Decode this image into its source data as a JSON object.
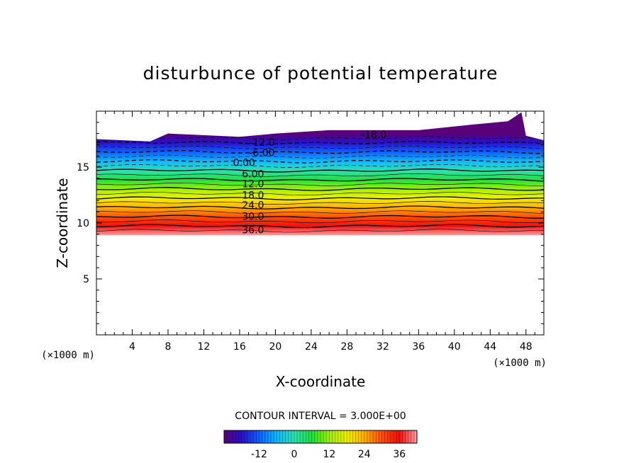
{
  "chart_data": {
    "type": "contour",
    "title": "disturbunce of potential temperature",
    "xlabel": "X-coordinate",
    "ylabel": "Z-coordinate",
    "x_unit_left": "(×1000 m)",
    "x_unit_right": "(×1000 m)",
    "xlim": [
      0,
      50
    ],
    "ylim": [
      0,
      20
    ],
    "x_ticks": [
      4,
      8,
      12,
      16,
      20,
      24,
      28,
      32,
      36,
      40,
      44,
      48
    ],
    "y_ticks": [
      5,
      10,
      15
    ],
    "contour_interval_text": "CONTOUR INTERVAL = 3.000E+00",
    "contour_interval": 3.0,
    "value_range": [
      -24,
      42
    ],
    "contour_labels": [
      {
        "text": "-18.0",
        "x": 31,
        "z": 17.9,
        "value": -18
      },
      {
        "text": "-12.0",
        "x": 18.5,
        "z": 17.2,
        "value": -12
      },
      {
        "text": "-6.00",
        "x": 18.5,
        "z": 16.3,
        "value": -6
      },
      {
        "text": "0.00",
        "x": 16.5,
        "z": 15.4,
        "value": 0
      },
      {
        "text": "6.00",
        "x": 17.5,
        "z": 14.4,
        "value": 6
      },
      {
        "text": "12.0",
        "x": 17.5,
        "z": 13.5,
        "value": 12
      },
      {
        "text": "18.0",
        "x": 17.5,
        "z": 12.5,
        "value": 18
      },
      {
        "text": "24.0",
        "x": 17.5,
        "z": 11.6,
        "value": 24
      },
      {
        "text": "30.0",
        "x": 17.5,
        "z": 10.6,
        "value": 30
      },
      {
        "text": "36.0",
        "x": 17.5,
        "z": 9.4,
        "value": 36
      }
    ],
    "field_extent": {
      "bottom_z": 8.9,
      "top_z_profile": [
        {
          "x": 0,
          "z": 17.5
        },
        {
          "x": 6,
          "z": 17.3
        },
        {
          "x": 8,
          "z": 18.0
        },
        {
          "x": 16,
          "z": 17.7
        },
        {
          "x": 20,
          "z": 18.0
        },
        {
          "x": 26,
          "z": 18.3
        },
        {
          "x": 36,
          "z": 18.3
        },
        {
          "x": 42,
          "z": 18.8
        },
        {
          "x": 46,
          "z": 19.1
        },
        {
          "x": 47.5,
          "z": 19.9
        },
        {
          "x": 48,
          "z": 17.8
        },
        {
          "x": 50,
          "z": 17.4
        }
      ]
    },
    "colorbar": {
      "tick_labels": [
        "-12",
        "0",
        "12",
        "24",
        "36"
      ],
      "tick_values": [
        -12,
        0,
        12,
        24,
        36
      ]
    }
  }
}
